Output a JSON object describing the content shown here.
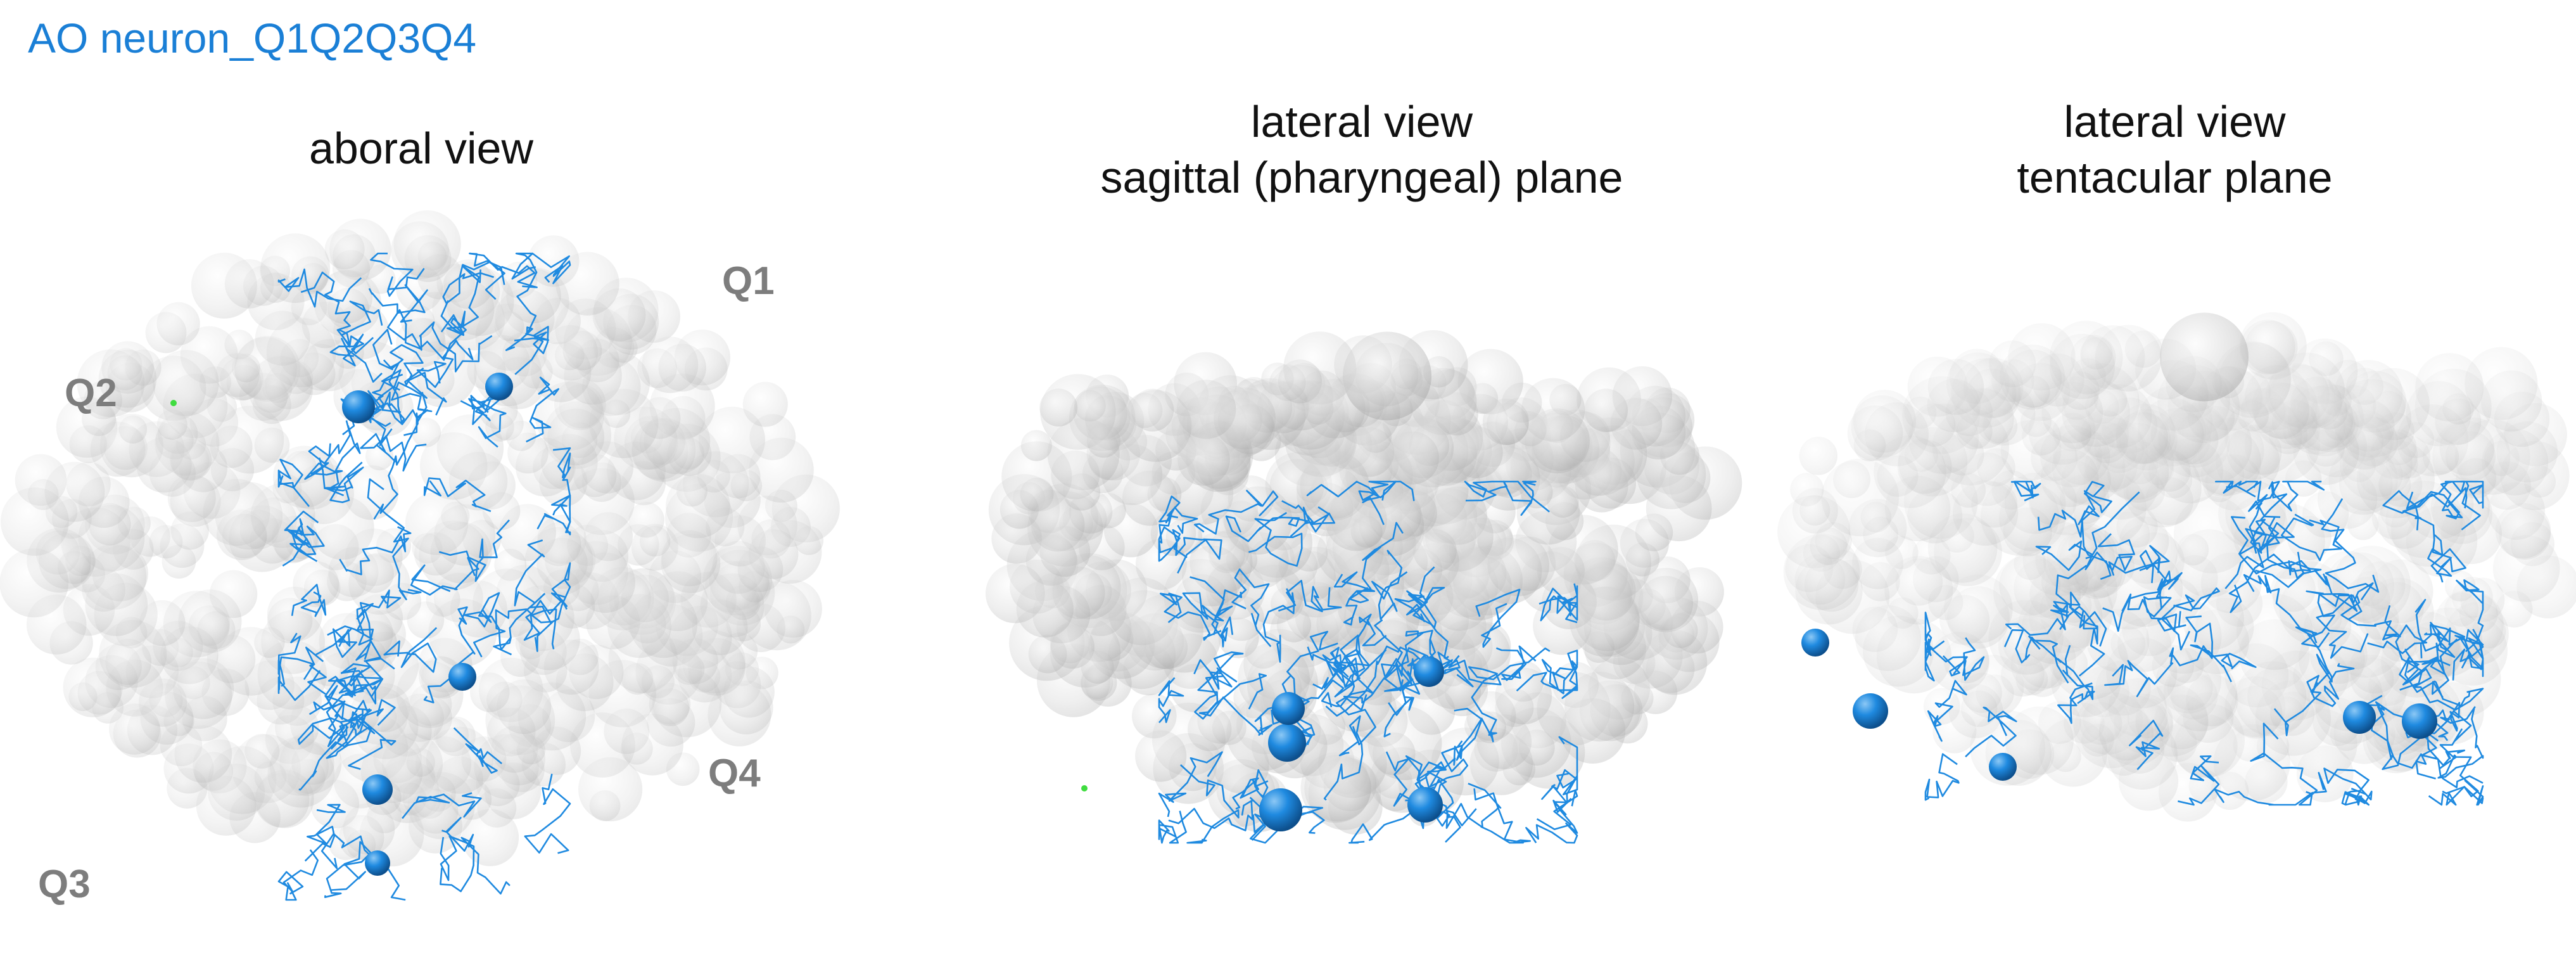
{
  "title": "AO neuron_Q1Q2Q3Q4",
  "colors": {
    "title": "#1a7fd6",
    "neuron": "#1f8ae0",
    "cells": "#b8b8b8",
    "quadrant_labels": "#7d7d7d",
    "marker": "#3fdc3f"
  },
  "panels": [
    {
      "heading": [
        "aboral view"
      ],
      "quadrants": [
        "Q1",
        "Q2",
        "Q3",
        "Q4"
      ]
    },
    {
      "heading": [
        "lateral view",
        "sagittal (pharyngeal) plane"
      ]
    },
    {
      "heading": [
        "lateral view",
        "tentacular plane"
      ]
    }
  ]
}
